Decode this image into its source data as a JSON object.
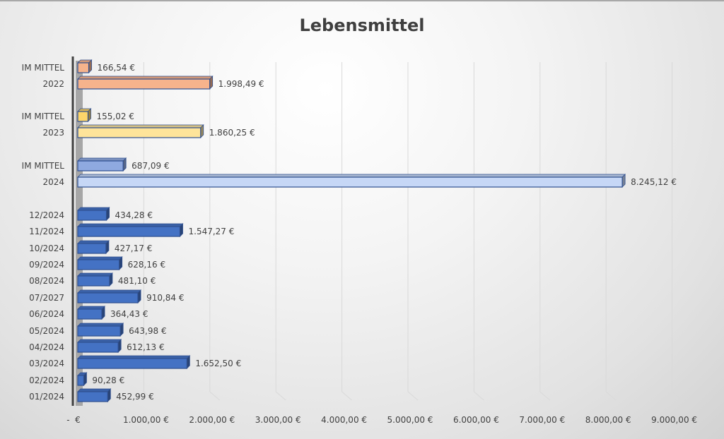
{
  "chart_data": {
    "type": "bar",
    "orientation": "horizontal",
    "title": "Lebensmittel",
    "xlabel": "",
    "ylabel": "",
    "xlim": [
      0,
      9000
    ],
    "grid": true,
    "legend": "none",
    "x_ticks": [
      0,
      1000,
      2000,
      3000,
      4000,
      5000,
      6000,
      7000,
      8000,
      9000
    ],
    "x_tick_labels": [
      "-  €",
      "1.000,00 €",
      "2.000,00 €",
      "3.000,00 €",
      "4.000,00 €",
      "5.000,00 €",
      "6.000,00 €",
      "7.000,00 €",
      "8.000,00 €",
      "9.000,00 €"
    ],
    "categories": [
      {
        "label": "IM MITTEL",
        "value": 166.54,
        "value_label": "166,54 €",
        "group": "2022-avg",
        "color": "#f6b38c"
      },
      {
        "label": "2022",
        "value": 1998.49,
        "value_label": "1.998,49 €",
        "group": "2022",
        "color": "#f6b38c"
      },
      {
        "label": "IM MITTEL",
        "value": 155.02,
        "value_label": "155,02 €",
        "group": "2023-avg",
        "color": "#fed66a"
      },
      {
        "label": "2023",
        "value": 1860.25,
        "value_label": "1.860,25 €",
        "group": "2023",
        "color": "#fee49a"
      },
      {
        "label": "IM MITTEL",
        "value": 687.09,
        "value_label": "687,09 €",
        "group": "2024-avg",
        "color": "#8fa9e0"
      },
      {
        "label": "2024",
        "value": 8245.12,
        "value_label": "8.245,12 €",
        "group": "2024",
        "color": "#c6d7f6"
      },
      {
        "label": "12/2024",
        "value": 434.28,
        "value_label": "434,28 €",
        "group": "month",
        "color": "#4472c4"
      },
      {
        "label": "11/2024",
        "value": 1547.27,
        "value_label": "1.547,27 €",
        "group": "month",
        "color": "#4472c4"
      },
      {
        "label": "10/2024",
        "value": 427.17,
        "value_label": "427,17 €",
        "group": "month",
        "color": "#4472c4"
      },
      {
        "label": "09/2024",
        "value": 628.16,
        "value_label": "628,16 €",
        "group": "month",
        "color": "#4472c4"
      },
      {
        "label": "08/2024",
        "value": 481.1,
        "value_label": "481,10 €",
        "group": "month",
        "color": "#4472c4"
      },
      {
        "label": "07/2027",
        "value": 910.84,
        "value_label": "910,84 €",
        "group": "month",
        "color": "#4472c4"
      },
      {
        "label": "06/2024",
        "value": 364.43,
        "value_label": "364,43 €",
        "group": "month",
        "color": "#4472c4"
      },
      {
        "label": "05/2024",
        "value": 643.98,
        "value_label": "643,98 €",
        "group": "month",
        "color": "#4472c4"
      },
      {
        "label": "04/2024",
        "value": 612.13,
        "value_label": "612,13 €",
        "group": "month",
        "color": "#4472c4"
      },
      {
        "label": "03/2024",
        "value": 1652.5,
        "value_label": "1.652,50 €",
        "group": "month",
        "color": "#4472c4"
      },
      {
        "label": "02/2024",
        "value": 90.28,
        "value_label": "90,28 €",
        "group": "month",
        "color": "#4472c4"
      },
      {
        "label": "01/2024",
        "value": 452.99,
        "value_label": "452,99 €",
        "group": "month",
        "color": "#4472c4"
      }
    ],
    "colors": {
      "axis": "#404040",
      "axis_shadow": "#a6a6a6",
      "gridline": "#d9d9d9",
      "bar_outline": "#2f4f8f"
    }
  }
}
